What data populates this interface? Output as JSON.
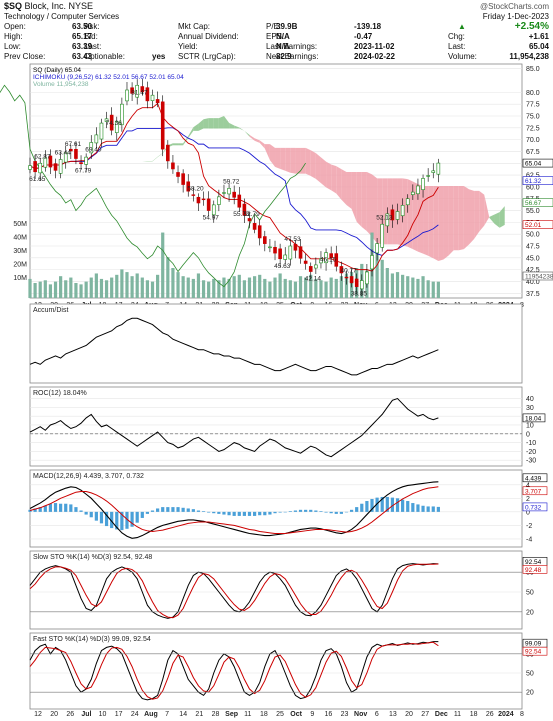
{
  "header": {
    "symbol": "$SQ",
    "name": "Block, Inc. NYSE",
    "sector": "Technology / Computer Services",
    "copyright": "@StockCharts.com",
    "date": "Friday 1-Dec-2023",
    "change_pct": "+2.54%",
    "change": "+1.61",
    "last": "65.04",
    "volume": "11,954,238",
    "fields_col1": [
      [
        "Open:",
        "63.50"
      ],
      [
        "High:",
        "65.17"
      ],
      [
        "Low:",
        "63.39"
      ],
      [
        "Prev Close:",
        "63.43"
      ]
    ],
    "fields_col2": [
      [
        "Ask:",
        ""
      ],
      [
        "Bid:",
        ""
      ],
      [
        "Last:",
        ""
      ],
      [
        "Optionable:",
        "yes"
      ]
    ],
    "fields_col3": [
      [
        "Mkt Cap:",
        "39.9B"
      ],
      [
        "Annual Dividend:",
        "N/A"
      ],
      [
        "Yield:",
        "N/A"
      ],
      [
        "SCTR (LrgCap):",
        "82.9"
      ]
    ],
    "fields_col4": [
      [
        "P/E:",
        "-139.18"
      ],
      [
        "EPS:",
        "-0.47"
      ],
      [
        "Last Earnings:",
        "2023-11-02"
      ],
      [
        "Next Earnings:",
        "2024-02-22"
      ]
    ],
    "right_labels": [
      [
        "Chg:",
        "+1.61"
      ],
      [
        "Last:",
        "65.04"
      ],
      [
        "Volume:",
        "11,954,238"
      ]
    ],
    "colors": {
      "up": "#1a8a1a",
      "down": "#cc0000",
      "price": "#000000",
      "kumo_bull": "#8bc48b",
      "kumo_bear": "#f0a0aa",
      "tenkan": "#cc0000",
      "kijun": "#1a1ad0",
      "chikou": "#2e8b2e",
      "volume": "#7fb5a0",
      "macd_hist": "#4aa0d8",
      "signal": "#cc0000"
    }
  },
  "chart_data": [
    {
      "type": "candlestick",
      "title": "SQ (Daily) 65.04",
      "legend": [
        "SQ (Daily) 65.04",
        "ICHIMOKU (9,26,52) 61.32 52.01 56.67 52.01 65.04",
        "Volume 11,954,238"
      ],
      "x_ticks": [
        "12",
        "20",
        "26",
        "Jul",
        "10",
        "17",
        "24",
        "Aug",
        "7",
        "14",
        "21",
        "28",
        "Sep",
        "11",
        "18",
        "25",
        "Oct",
        "9",
        "16",
        "23",
        "Nov",
        "6",
        "13",
        "20",
        "27",
        "Dec",
        "11",
        "18",
        "26",
        "2024",
        "8"
      ],
      "price_ticks": [
        85.0,
        80.0,
        77.5,
        75.0,
        72.5,
        70.0,
        67.5,
        65.0,
        62.5,
        60.0,
        57.5,
        55.0,
        52.5,
        50.0,
        47.5,
        45.0,
        42.5,
        40.0,
        37.5
      ],
      "volume_ticks": [
        "50M",
        "40M",
        "30M",
        "20M",
        "10M"
      ],
      "right_tags": [
        [
          "65.04",
          "#000000"
        ],
        [
          "61.32",
          "#1a1ad0"
        ],
        [
          "56.67",
          "#2e8b2e"
        ],
        [
          "52.01",
          "#cc0000"
        ],
        [
          "11954238",
          "#555555"
        ]
      ],
      "annotations": [
        [
          "67.61",
          -1
        ],
        [
          "67.79",
          -1
        ],
        [
          "62.87",
          -1
        ],
        [
          "61.65",
          -1
        ],
        [
          "63.44",
          -1
        ],
        [
          "69.40",
          -1
        ],
        [
          "74.36",
          -1
        ],
        [
          "81.47",
          -1
        ],
        [
          "58.20",
          -1
        ],
        [
          "54.97",
          -1
        ],
        [
          "59.72",
          -1
        ],
        [
          "55.73",
          -1
        ],
        [
          "52.79",
          -1
        ],
        [
          "45.63",
          -1
        ],
        [
          "47.53",
          -1
        ],
        [
          "42.14",
          -1
        ],
        [
          "40.77",
          -1
        ],
        [
          "46.15",
          -1
        ],
        [
          "52.13",
          -1
        ],
        [
          "38.85",
          -1
        ]
      ],
      "close": [
        64.5,
        63.2,
        65.0,
        66.1,
        64.2,
        63.5,
        65.8,
        67.2,
        67.6,
        66.0,
        64.9,
        66.3,
        69.4,
        71.0,
        73.5,
        74.4,
        72.0,
        73.8,
        77.5,
        80.5,
        79.8,
        81.5,
        80.1,
        78.2,
        79.4,
        77.8,
        68.0,
        65.5,
        63.8,
        62.2,
        60.5,
        59.1,
        58.2,
        56.6,
        57.3,
        55.0,
        56.2,
        57.9,
        58.8,
        59.7,
        57.8,
        55.7,
        54.0,
        52.8,
        51.0,
        49.2,
        48.0,
        47.3,
        46.0,
        44.8,
        45.6,
        47.5,
        46.6,
        44.9,
        43.8,
        42.1,
        43.5,
        44.8,
        46.1,
        45.0,
        43.2,
        41.8,
        40.8,
        39.7,
        38.9,
        40.2,
        42.0,
        45.5,
        48.0,
        52.1,
        54.3,
        53.0,
        54.8,
        56.1,
        57.5,
        58.9,
        60.2,
        61.8,
        62.4,
        63.4,
        65.04
      ],
      "volume": [
        14,
        11,
        12,
        13,
        10,
        12,
        16,
        13,
        15,
        11,
        10,
        12,
        15,
        18,
        14,
        13,
        15,
        17,
        21,
        19,
        16,
        18,
        15,
        13,
        12,
        17,
        48,
        30,
        22,
        19,
        16,
        15,
        14,
        18,
        13,
        12,
        14,
        13,
        15,
        14,
        16,
        17,
        13,
        15,
        16,
        17,
        14,
        12,
        15,
        18,
        14,
        13,
        12,
        16,
        15,
        17,
        14,
        13,
        12,
        15,
        14,
        16,
        18,
        19,
        22,
        25,
        20,
        48,
        35,
        28,
        22,
        18,
        19,
        17,
        16,
        15,
        14,
        16,
        13,
        12,
        11.95
      ],
      "accum_dist": [
        5,
        6,
        5,
        7,
        8,
        9,
        8,
        10,
        11,
        12,
        13,
        14,
        16,
        18,
        19,
        20,
        21,
        23,
        24,
        26,
        27,
        27,
        26,
        25,
        24,
        22,
        20,
        19,
        17,
        16,
        15,
        14,
        13,
        12,
        12,
        11,
        10,
        10,
        9,
        9,
        8,
        8,
        7,
        6,
        5,
        5,
        4,
        3,
        2,
        2,
        3,
        4,
        5,
        4,
        3,
        2,
        2,
        3,
        4,
        4,
        3,
        2,
        1,
        0,
        0,
        1,
        2,
        3,
        3,
        4,
        5,
        5,
        6,
        7,
        8,
        9,
        8,
        9,
        10,
        11,
        12
      ],
      "roc": [
        2,
        5,
        8,
        4,
        10,
        12,
        15,
        10,
        6,
        8,
        12,
        18,
        22,
        14,
        8,
        10,
        6,
        2,
        -2,
        -6,
        -10,
        -14,
        -10,
        -6,
        -2,
        2,
        -4,
        -10,
        -12,
        -16,
        -14,
        -10,
        -6,
        -4,
        -8,
        -12,
        -16,
        -20,
        -18,
        -14,
        -10,
        -12,
        -16,
        -18,
        -20,
        -14,
        -10,
        -6,
        -8,
        -12,
        -16,
        -18,
        -20,
        -22,
        -18,
        -14,
        -16,
        -20,
        -24,
        -26,
        -22,
        -18,
        -14,
        -10,
        -6,
        -2,
        4,
        10,
        16,
        22,
        30,
        38,
        40,
        34,
        28,
        24,
        20,
        22,
        18,
        16,
        18.04
      ],
      "macd": [
        0.5,
        0.9,
        1.3,
        1.8,
        2.4,
        2.9,
        3.2,
        3.5,
        3.7,
        3.6,
        3.2,
        2.6,
        2.0,
        1.2,
        0.4,
        -0.5,
        -1.4,
        -2.3,
        -3.1,
        -3.6,
        -3.9,
        -3.8,
        -3.5,
        -3.1,
        -2.7,
        -2.3,
        -2.0,
        -1.8,
        -1.6,
        -1.4,
        -1.3,
        -1.2,
        -1.2,
        -1.3,
        -1.4,
        -1.6,
        -1.8,
        -2.0,
        -2.2,
        -2.4,
        -2.6,
        -2.8,
        -3.0,
        -3.2,
        -3.3,
        -3.4,
        -3.5,
        -3.5,
        -3.4,
        -3.3,
        -3.2,
        -3.0,
        -2.8,
        -2.6,
        -2.5,
        -2.4,
        -2.4,
        -2.5,
        -2.7,
        -2.9,
        -3.1,
        -3.2,
        -3.0,
        -2.6,
        -2.0,
        -1.2,
        -0.4,
        0.4,
        1.2,
        1.9,
        2.5,
        3.0,
        3.4,
        3.7,
        3.9,
        4.0,
        4.1,
        4.2,
        4.3,
        4.4,
        4.439
      ],
      "macd_signal": [
        0.2,
        0.4,
        0.6,
        0.9,
        1.2,
        1.6,
        2.0,
        2.3,
        2.6,
        2.9,
        3.0,
        3.0,
        2.8,
        2.5,
        2.1,
        1.6,
        1.0,
        0.3,
        -0.4,
        -1.1,
        -1.7,
        -2.2,
        -2.6,
        -2.8,
        -2.9,
        -2.8,
        -2.7,
        -2.5,
        -2.3,
        -2.1,
        -1.9,
        -1.7,
        -1.6,
        -1.5,
        -1.5,
        -1.5,
        -1.6,
        -1.7,
        -1.8,
        -1.9,
        -2.0,
        -2.2,
        -2.4,
        -2.6,
        -2.7,
        -2.9,
        -3.0,
        -3.1,
        -3.2,
        -3.2,
        -3.2,
        -3.1,
        -3.0,
        -2.9,
        -2.8,
        -2.7,
        -2.6,
        -2.6,
        -2.6,
        -2.7,
        -2.8,
        -2.9,
        -3.0,
        -2.9,
        -2.7,
        -2.4,
        -2.0,
        -1.5,
        -0.9,
        -0.3,
        0.3,
        0.9,
        1.4,
        1.9,
        2.3,
        2.7,
        3.0,
        3.3,
        3.5,
        3.6,
        3.707
      ],
      "macd_hist": [
        0.3,
        0.5,
        0.7,
        0.9,
        1.2,
        1.3,
        1.2,
        1.2,
        1.1,
        0.7,
        0.2,
        -0.4,
        -0.8,
        -1.3,
        -1.7,
        -2.1,
        -2.4,
        -2.6,
        -2.7,
        -2.5,
        -2.2,
        -1.6,
        -0.9,
        -0.3,
        0.2,
        0.5,
        0.7,
        0.7,
        0.7,
        0.7,
        0.6,
        0.5,
        0.4,
        0.2,
        0.1,
        -0.1,
        -0.2,
        -0.3,
        -0.4,
        -0.5,
        -0.6,
        -0.6,
        -0.6,
        -0.6,
        -0.6,
        -0.5,
        -0.5,
        -0.4,
        -0.2,
        -0.1,
        0.0,
        0.1,
        0.2,
        0.3,
        0.3,
        0.3,
        0.2,
        0.1,
        -0.1,
        -0.2,
        -0.3,
        -0.3,
        0.0,
        0.3,
        0.7,
        1.2,
        1.6,
        1.9,
        2.1,
        2.2,
        2.2,
        2.1,
        2.0,
        1.8,
        1.6,
        1.3,
        1.1,
        0.9,
        0.8,
        0.8,
        0.732
      ],
      "slow_k": [
        60,
        70,
        80,
        85,
        88,
        90,
        88,
        85,
        80,
        60,
        40,
        25,
        22,
        30,
        50,
        70,
        80,
        85,
        88,
        85,
        80,
        70,
        50,
        30,
        20,
        15,
        12,
        10,
        12,
        20,
        40,
        60,
        75,
        80,
        78,
        70,
        60,
        50,
        40,
        30,
        22,
        20,
        25,
        35,
        50,
        65,
        75,
        80,
        78,
        70,
        60,
        45,
        30,
        20,
        15,
        14,
        20,
        30,
        45,
        60,
        75,
        82,
        85,
        80,
        70,
        55,
        40,
        25,
        20,
        30,
        50,
        70,
        85,
        90,
        92,
        93,
        92,
        91,
        92,
        93,
        92.54
      ],
      "slow_d": [
        55,
        62,
        72,
        80,
        85,
        88,
        88,
        86,
        83,
        75,
        60,
        45,
        32,
        28,
        35,
        50,
        65,
        78,
        84,
        86,
        84,
        78,
        67,
        50,
        35,
        22,
        16,
        12,
        11,
        15,
        25,
        42,
        58,
        72,
        78,
        76,
        70,
        60,
        50,
        40,
        31,
        24,
        22,
        27,
        37,
        50,
        63,
        73,
        78,
        76,
        70,
        58,
        45,
        32,
        22,
        16,
        16,
        21,
        32,
        45,
        60,
        72,
        81,
        83,
        79,
        68,
        55,
        40,
        28,
        25,
        33,
        50,
        68,
        82,
        89,
        91,
        92,
        92,
        92,
        92,
        92.48
      ],
      "fast_k": [
        70,
        85,
        92,
        95,
        80,
        90,
        85,
        70,
        50,
        30,
        20,
        25,
        40,
        65,
        85,
        90,
        92,
        88,
        80,
        60,
        40,
        20,
        10,
        8,
        10,
        15,
        40,
        70,
        85,
        80,
        60,
        40,
        30,
        20,
        15,
        25,
        50,
        70,
        80,
        75,
        60,
        40,
        20,
        15,
        20,
        35,
        60,
        80,
        85,
        70,
        50,
        30,
        15,
        10,
        12,
        25,
        45,
        70,
        85,
        88,
        80,
        60,
        35,
        20,
        25,
        50,
        75,
        90,
        95,
        92,
        94,
        96,
        93,
        95,
        97,
        95,
        96,
        98,
        97,
        99,
        99.09
      ],
      "fast_d": [
        60,
        70,
        82,
        90,
        89,
        88,
        85,
        82,
        68,
        50,
        33,
        25,
        28,
        43,
        63,
        80,
        89,
        90,
        87,
        76,
        60,
        40,
        23,
        13,
        9,
        11,
        22,
        42,
        65,
        78,
        75,
        60,
        43,
        30,
        22,
        20,
        30,
        48,
        67,
        75,
        72,
        58,
        40,
        25,
        18,
        23,
        38,
        58,
        75,
        78,
        68,
        50,
        32,
        18,
        12,
        16,
        27,
        47,
        67,
        81,
        84,
        76,
        58,
        38,
        27,
        32,
        50,
        72,
        87,
        92,
        94,
        94,
        94,
        95,
        95,
        96,
        95,
        96,
        97,
        98,
        92.54
      ],
      "indicator_titles": {
        "accum": "Accum/Dist",
        "roc": "ROC(12) 18.04%",
        "macd": "MACD(12,26,9) 4.439, 3.707, 0.732",
        "slow": "Slow STO %K(14) %D(3) 92.54, 92.48",
        "fast": "Fast STO %K(14) %D(3) 99.09, 92.54"
      },
      "roc_ticks": [
        "40",
        "30",
        "20",
        "10",
        "0",
        "-10",
        "-20",
        "-30"
      ],
      "roc_tag": "18.04",
      "macd_ticks": [
        "4",
        "2",
        "0",
        "-2",
        "-4"
      ],
      "macd_tags": [
        [
          "4.439",
          "#000000"
        ],
        [
          "3.707",
          "#cc0000"
        ],
        [
          "0.732",
          "#1a1ad0"
        ]
      ],
      "slow_ticks": [
        "80",
        "50",
        "20"
      ],
      "slow_tags": [
        [
          "92.54",
          "#000000"
        ],
        [
          "92.48",
          "#cc0000"
        ]
      ],
      "fast_ticks": [
        "80",
        "50",
        "20"
      ],
      "fast_tags": [
        [
          "99.09",
          "#000000"
        ],
        [
          "92.54",
          "#cc0000"
        ]
      ]
    }
  ]
}
